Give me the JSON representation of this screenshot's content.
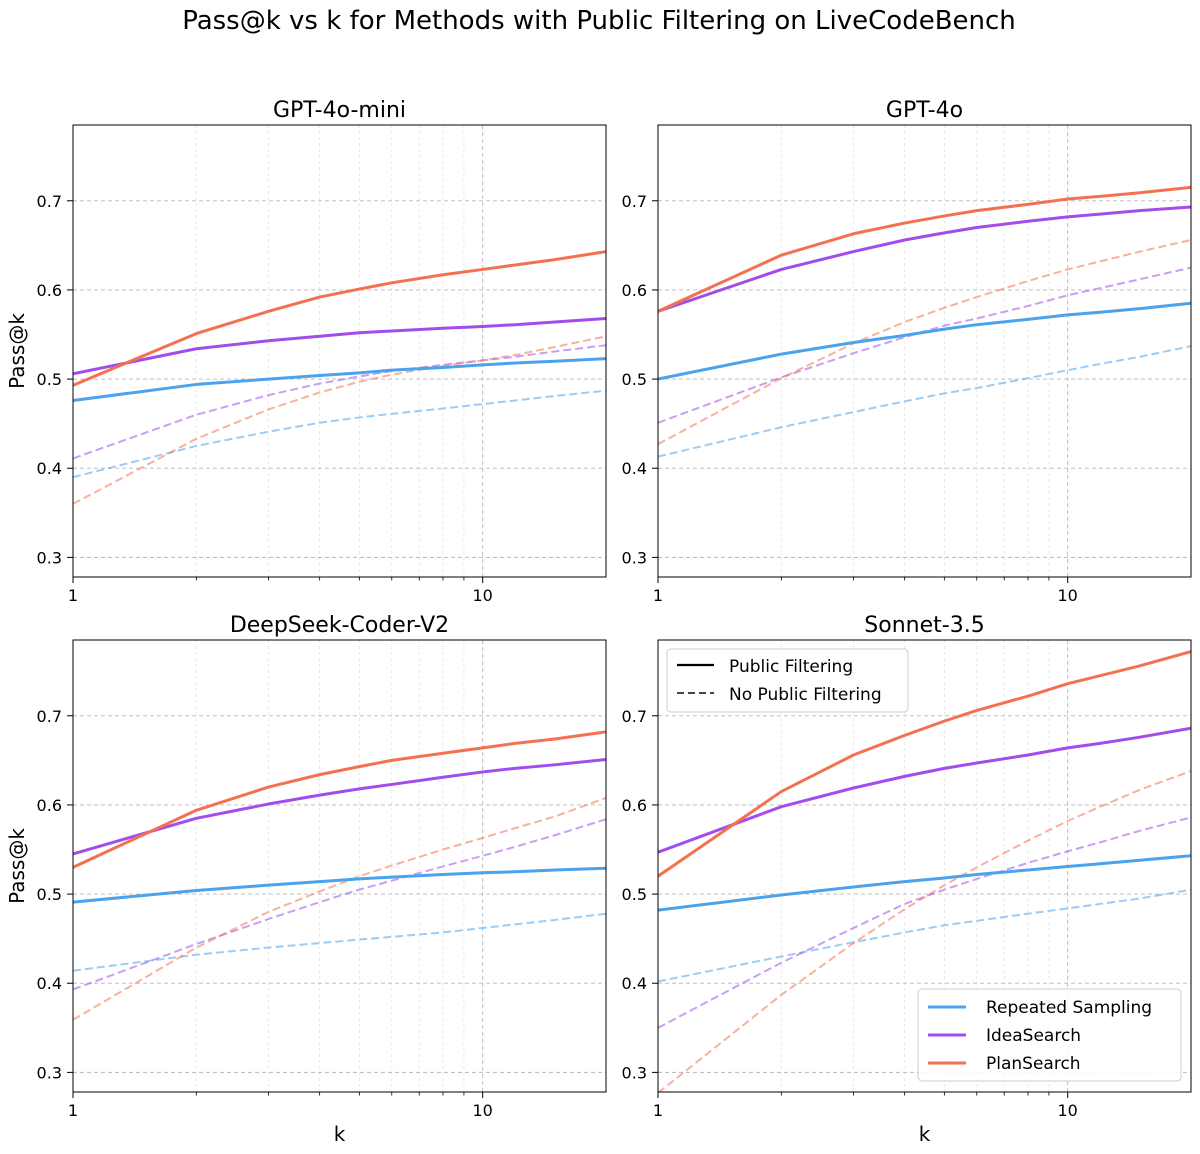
{
  "suptitle": "Pass@k vs k for Methods with Public Filtering on LiveCodeBench",
  "colors": {
    "Repeated Sampling": "#4aa3ec",
    "IdeaSearch": "#a14ded",
    "PlanSearch": "#f4714f"
  },
  "legend_styles": {
    "solid_label": "Public Filtering",
    "dashed_label": "No Public Filtering"
  },
  "legend_methods": [
    "Repeated Sampling",
    "IdeaSearch",
    "PlanSearch"
  ],
  "chart_data": [
    {
      "type": "line",
      "title": "GPT-4o-mini",
      "xlabel": "",
      "ylabel": "Pass@k",
      "xscale": "log",
      "xlim": [
        1,
        20
      ],
      "ylim": [
        0.278,
        0.785
      ],
      "xticks": [
        1,
        10
      ],
      "yticks": [
        0.3,
        0.4,
        0.5,
        0.6,
        0.7
      ],
      "grid": true,
      "x": [
        1,
        2,
        3,
        4,
        5,
        6,
        8,
        10,
        12,
        15,
        20
      ],
      "series": [
        {
          "method": "Repeated Sampling",
          "style": "solid",
          "values": [
            0.476,
            0.494,
            0.5,
            0.504,
            0.507,
            0.51,
            0.513,
            0.516,
            0.518,
            0.52,
            0.523
          ]
        },
        {
          "method": "IdeaSearch",
          "style": "solid",
          "values": [
            0.506,
            0.534,
            0.543,
            0.548,
            0.552,
            0.554,
            0.557,
            0.559,
            0.561,
            0.564,
            0.568
          ]
        },
        {
          "method": "PlanSearch",
          "style": "solid",
          "values": [
            0.493,
            0.551,
            0.576,
            0.592,
            0.601,
            0.608,
            0.617,
            0.623,
            0.628,
            0.634,
            0.643
          ]
        },
        {
          "method": "Repeated Sampling",
          "style": "dashed",
          "values": [
            0.39,
            0.425,
            0.441,
            0.451,
            0.457,
            0.461,
            0.467,
            0.472,
            0.476,
            0.481,
            0.487
          ]
        },
        {
          "method": "IdeaSearch",
          "style": "dashed",
          "values": [
            0.411,
            0.46,
            0.482,
            0.495,
            0.503,
            0.509,
            0.516,
            0.521,
            0.525,
            0.531,
            0.538
          ]
        },
        {
          "method": "PlanSearch",
          "style": "dashed",
          "values": [
            0.36,
            0.433,
            0.466,
            0.485,
            0.497,
            0.505,
            0.515,
            0.521,
            0.527,
            0.536,
            0.548
          ]
        }
      ]
    },
    {
      "type": "line",
      "title": "GPT-4o",
      "xlabel": "",
      "ylabel": "",
      "xscale": "log",
      "xlim": [
        1,
        20
      ],
      "ylim": [
        0.278,
        0.785
      ],
      "xticks": [
        1,
        10
      ],
      "yticks": [
        0.3,
        0.4,
        0.5,
        0.6,
        0.7
      ],
      "grid": true,
      "x": [
        1,
        2,
        3,
        4,
        5,
        6,
        8,
        10,
        12,
        15,
        20
      ],
      "series": [
        {
          "method": "Repeated Sampling",
          "style": "solid",
          "values": [
            0.5,
            0.528,
            0.541,
            0.549,
            0.556,
            0.561,
            0.567,
            0.572,
            0.575,
            0.579,
            0.585
          ]
        },
        {
          "method": "IdeaSearch",
          "style": "solid",
          "values": [
            0.576,
            0.623,
            0.643,
            0.656,
            0.664,
            0.67,
            0.677,
            0.682,
            0.685,
            0.689,
            0.693
          ]
        },
        {
          "method": "PlanSearch",
          "style": "solid",
          "values": [
            0.576,
            0.639,
            0.663,
            0.675,
            0.683,
            0.689,
            0.696,
            0.702,
            0.705,
            0.709,
            0.715
          ]
        },
        {
          "method": "Repeated Sampling",
          "style": "dashed",
          "values": [
            0.413,
            0.446,
            0.463,
            0.475,
            0.484,
            0.49,
            0.501,
            0.51,
            0.517,
            0.525,
            0.537
          ]
        },
        {
          "method": "IdeaSearch",
          "style": "dashed",
          "values": [
            0.451,
            0.502,
            0.529,
            0.547,
            0.56,
            0.568,
            0.582,
            0.594,
            0.602,
            0.612,
            0.625
          ]
        },
        {
          "method": "PlanSearch",
          "style": "dashed",
          "values": [
            0.427,
            0.501,
            0.54,
            0.564,
            0.58,
            0.592,
            0.61,
            0.623,
            0.632,
            0.643,
            0.656
          ]
        }
      ]
    },
    {
      "type": "line",
      "title": "DeepSeek-Coder-V2",
      "xlabel": "k",
      "ylabel": "Pass@k",
      "xscale": "log",
      "xlim": [
        1,
        20
      ],
      "ylim": [
        0.278,
        0.785
      ],
      "xticks": [
        1,
        10
      ],
      "yticks": [
        0.3,
        0.4,
        0.5,
        0.6,
        0.7
      ],
      "grid": true,
      "x": [
        1,
        2,
        3,
        4,
        5,
        6,
        8,
        10,
        12,
        15,
        20
      ],
      "series": [
        {
          "method": "Repeated Sampling",
          "style": "solid",
          "values": [
            0.491,
            0.504,
            0.51,
            0.514,
            0.517,
            0.519,
            0.522,
            0.524,
            0.525,
            0.527,
            0.529
          ]
        },
        {
          "method": "IdeaSearch",
          "style": "solid",
          "values": [
            0.545,
            0.585,
            0.601,
            0.611,
            0.618,
            0.623,
            0.631,
            0.637,
            0.641,
            0.645,
            0.651
          ]
        },
        {
          "method": "PlanSearch",
          "style": "solid",
          "values": [
            0.53,
            0.594,
            0.62,
            0.634,
            0.643,
            0.65,
            0.658,
            0.664,
            0.669,
            0.674,
            0.682
          ]
        },
        {
          "method": "Repeated Sampling",
          "style": "dashed",
          "values": [
            0.414,
            0.432,
            0.44,
            0.445,
            0.449,
            0.452,
            0.457,
            0.462,
            0.466,
            0.471,
            0.478
          ]
        },
        {
          "method": "IdeaSearch",
          "style": "dashed",
          "values": [
            0.393,
            0.444,
            0.472,
            0.491,
            0.505,
            0.515,
            0.531,
            0.543,
            0.553,
            0.566,
            0.584
          ]
        },
        {
          "method": "PlanSearch",
          "style": "dashed",
          "values": [
            0.359,
            0.44,
            0.48,
            0.503,
            0.52,
            0.532,
            0.55,
            0.563,
            0.574,
            0.587,
            0.608
          ]
        }
      ]
    },
    {
      "type": "line",
      "title": "Sonnet-3.5",
      "xlabel": "k",
      "ylabel": "",
      "xscale": "log",
      "xlim": [
        1,
        20
      ],
      "ylim": [
        0.278,
        0.785
      ],
      "xticks": [
        1,
        10
      ],
      "yticks": [
        0.3,
        0.4,
        0.5,
        0.6,
        0.7
      ],
      "grid": true,
      "legend": "style-legend top-left, method-legend bottom-right",
      "x": [
        1,
        2,
        3,
        4,
        5,
        6,
        8,
        10,
        12,
        15,
        20
      ],
      "series": [
        {
          "method": "Repeated Sampling",
          "style": "solid",
          "values": [
            0.482,
            0.499,
            0.508,
            0.514,
            0.518,
            0.522,
            0.527,
            0.531,
            0.534,
            0.538,
            0.543
          ]
        },
        {
          "method": "IdeaSearch",
          "style": "solid",
          "values": [
            0.547,
            0.598,
            0.619,
            0.632,
            0.641,
            0.647,
            0.656,
            0.664,
            0.669,
            0.676,
            0.686
          ]
        },
        {
          "method": "PlanSearch",
          "style": "solid",
          "values": [
            0.52,
            0.615,
            0.656,
            0.678,
            0.694,
            0.706,
            0.722,
            0.736,
            0.745,
            0.756,
            0.772
          ]
        },
        {
          "method": "Repeated Sampling",
          "style": "dashed",
          "values": [
            0.402,
            0.43,
            0.446,
            0.457,
            0.465,
            0.47,
            0.478,
            0.484,
            0.489,
            0.495,
            0.505
          ]
        },
        {
          "method": "IdeaSearch",
          "style": "dashed",
          "values": [
            0.35,
            0.423,
            0.462,
            0.489,
            0.505,
            0.517,
            0.535,
            0.548,
            0.558,
            0.571,
            0.586
          ]
        },
        {
          "method": "PlanSearch",
          "style": "dashed",
          "values": [
            0.277,
            0.387,
            0.445,
            0.483,
            0.51,
            0.53,
            0.56,
            0.582,
            0.598,
            0.617,
            0.638
          ]
        }
      ]
    }
  ]
}
